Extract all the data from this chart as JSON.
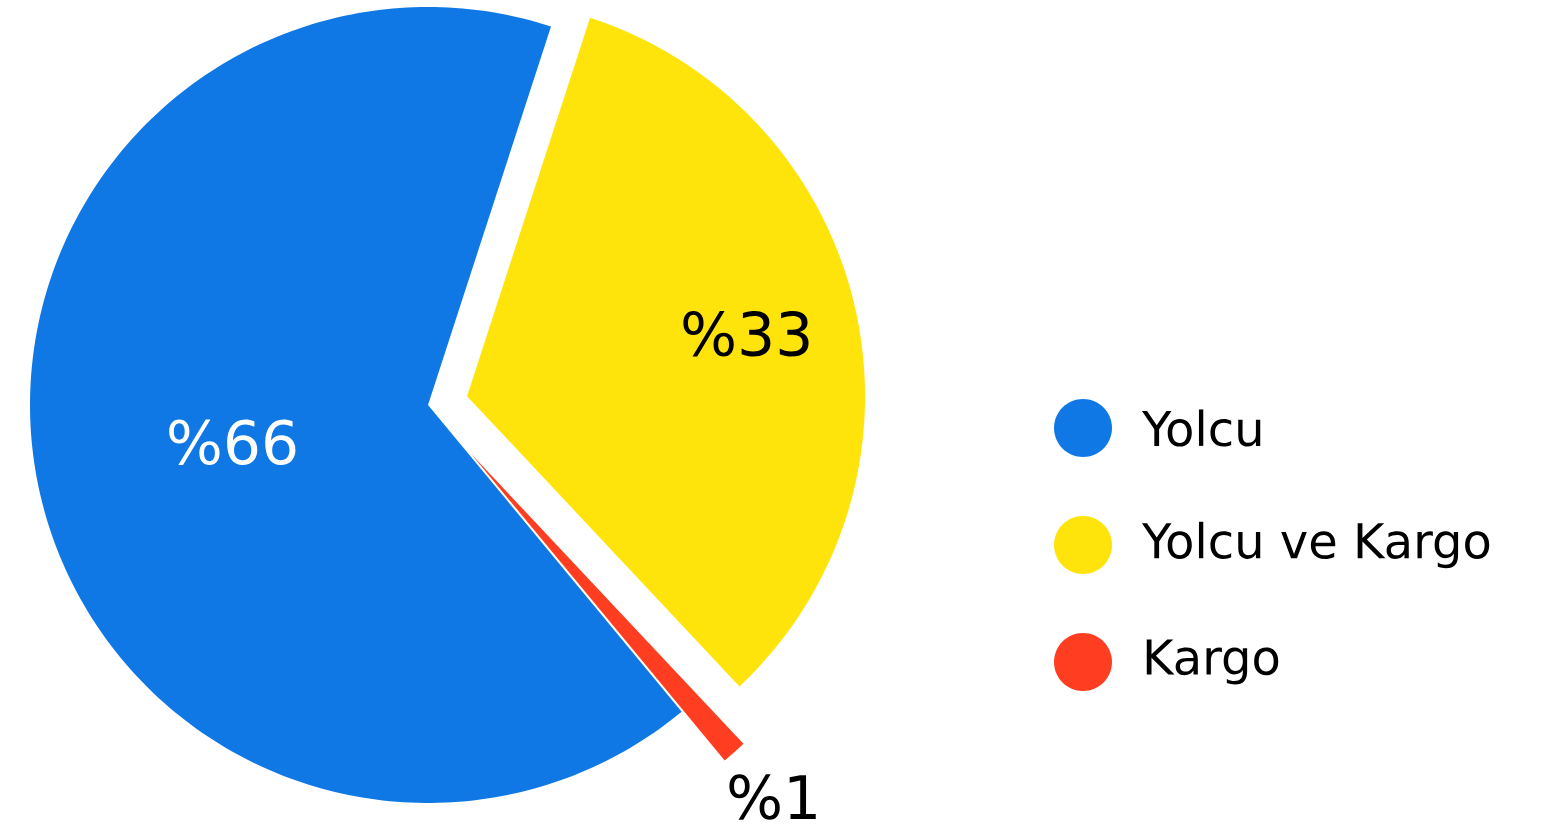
{
  "chart_data": {
    "type": "pie",
    "categories": [
      "Yolcu",
      "Yolcu ve Kargo",
      "Kargo"
    ],
    "values": [
      66,
      33,
      1
    ],
    "value_labels": [
      "%66",
      "%33",
      "%1"
    ],
    "colors": [
      "#1078e4",
      "#ffe40c",
      "#ff3d20"
    ],
    "legend": "right"
  }
}
